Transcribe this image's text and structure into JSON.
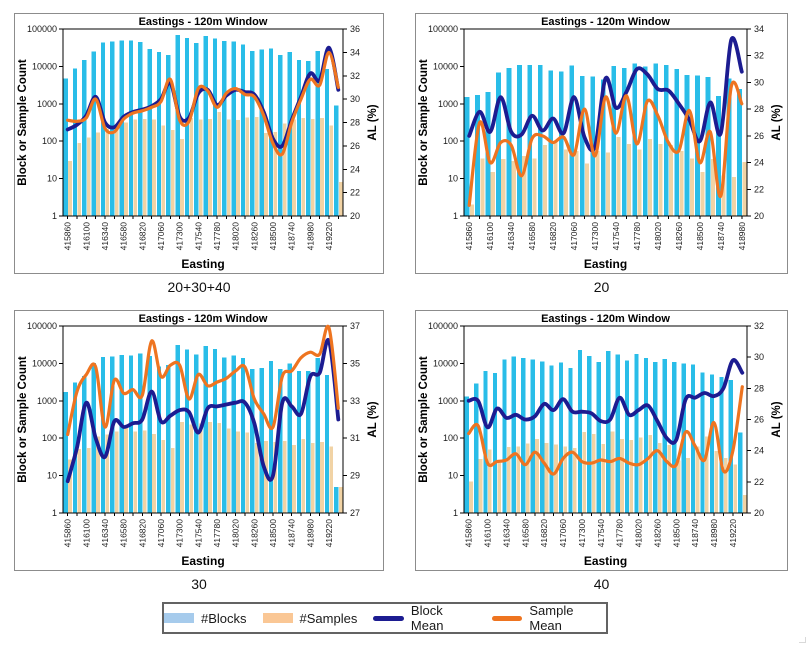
{
  "colors": {
    "blocks_bar": "#29BDE8",
    "samples_bar": "#F1D3A5",
    "block_mean": "#1C1C91",
    "sample_mean": "#EE7420",
    "legend_blocks": "#A6CBEC",
    "legend_samples": "#FAC795",
    "axis_line": "#000000",
    "tick_text": "#1a1a1a"
  },
  "legend": {
    "items": [
      {
        "label": "#Blocks",
        "swatch": "bar",
        "color_key": "legend_blocks"
      },
      {
        "label": "#Samples",
        "swatch": "bar",
        "color_key": "legend_samples"
      },
      {
        "label": "Block Mean",
        "swatch": "line",
        "color_key": "block_mean"
      },
      {
        "label": "Sample Mean",
        "swatch": "line",
        "color_key": "sample_mean"
      }
    ]
  },
  "chart_data": [
    {
      "id": "eastings-sum-20-30-40",
      "type": "bar+line",
      "panel_label": "20+30+40",
      "title": "Eastings - 120m Window",
      "xlabel": "Easting",
      "ylabel_left": "Block or Sample Count",
      "ylabel_right": "AL (%)",
      "left_axis": {
        "scale": "log",
        "min": 1,
        "max": 100000,
        "ticks": [
          "1",
          "10",
          "100",
          "1000",
          "10000",
          "100000"
        ]
      },
      "right_axis": {
        "min": 20,
        "max": 36,
        "ticks": [
          20,
          22,
          24,
          26,
          28,
          30,
          32,
          34,
          36
        ]
      },
      "x_start": 415860,
      "x_step": 120,
      "x_tick_labels": [
        "415860",
        "416100",
        "416340",
        "416580",
        "416820",
        "417060",
        "417300",
        "417540",
        "417780",
        "418020",
        "418260",
        "418500",
        "418740",
        "418980",
        "419220"
      ],
      "series": [
        {
          "name": "#Blocks",
          "type": "bar",
          "axis": "left",
          "color_key": "blocks_bar",
          "values": [
            4700,
            8900,
            15000,
            25000,
            43000,
            46000,
            50000,
            49000,
            45000,
            29000,
            24000,
            20000,
            70000,
            57000,
            42000,
            65000,
            55000,
            48000,
            46000,
            38000,
            26000,
            28000,
            30000,
            20000,
            24000,
            15000,
            14000,
            26000,
            8500,
            900
          ]
        },
        {
          "name": "#Samples",
          "type": "bar",
          "axis": "left",
          "color_key": "samples_bar",
          "values": [
            30,
            90,
            125,
            170,
            210,
            270,
            320,
            375,
            390,
            375,
            260,
            200,
            115,
            420,
            380,
            390,
            600,
            380,
            370,
            430,
            440,
            165,
            175,
            300,
            380,
            420,
            390,
            420,
            260,
            8
          ]
        },
        {
          "name": "Block Mean",
          "type": "line",
          "axis": "right",
          "color_key": "block_mean",
          "values": [
            27.4,
            27.8,
            28.6,
            30.2,
            28.0,
            27.6,
            28.5,
            28.9,
            29.1,
            29.4,
            30.0,
            31.4,
            28.5,
            28.4,
            30.5,
            30.8,
            29.5,
            30.3,
            30.8,
            30.6,
            30.4,
            28.9,
            26.6,
            26.0,
            28.2,
            30.2,
            32.2,
            31.6,
            34.4,
            30.8
          ]
        },
        {
          "name": "Sample Mean",
          "type": "line",
          "axis": "right",
          "color_key": "sample_mean",
          "values": [
            28.2,
            28.1,
            28.4,
            30.0,
            27.5,
            27.2,
            28.3,
            28.8,
            29.0,
            29.3,
            29.8,
            31.7,
            28.2,
            28.1,
            30.9,
            30.7,
            29.3,
            30.5,
            30.9,
            30.4,
            30.2,
            28.6,
            26.2,
            25.3,
            28.0,
            30.0,
            31.7,
            31.2,
            34.0,
            31.0
          ]
        }
      ]
    },
    {
      "id": "eastings-20",
      "type": "bar+line",
      "panel_label": "20",
      "title": "Eastings - 120m Window",
      "xlabel": "Easting",
      "ylabel_left": "Block or Sample Count",
      "ylabel_right": "AL (%)",
      "left_axis": {
        "scale": "log",
        "min": 1,
        "max": 100000,
        "ticks": [
          "1",
          "10",
          "100",
          "1000",
          "10000",
          "100000"
        ]
      },
      "right_axis": {
        "min": 20,
        "max": 34,
        "ticks": [
          20,
          22,
          24,
          26,
          28,
          30,
          32,
          34
        ]
      },
      "x_start": 415860,
      "x_step": 120,
      "x_tick_labels": [
        "415860",
        "416100",
        "416340",
        "416580",
        "416820",
        "417060",
        "417300",
        "417540",
        "417780",
        "418020",
        "418260",
        "418500",
        "418740",
        "418980"
      ],
      "series": [
        {
          "name": "#Blocks",
          "type": "bar",
          "axis": "left",
          "color_key": "blocks_bar",
          "values": [
            1500,
            1700,
            2100,
            6800,
            9000,
            11000,
            10800,
            11000,
            7800,
            7300,
            10500,
            5600,
            5300,
            4500,
            10300,
            9000,
            11800,
            10000,
            12100,
            10900,
            8600,
            5900,
            5800,
            5200,
            1600,
            4800,
            2500
          ]
        },
        {
          "name": "#Samples",
          "type": "bar",
          "axis": "left",
          "color_key": "samples_bar",
          "values": [
            2,
            35,
            15,
            33,
            30,
            40,
            35,
            80,
            95,
            60,
            55,
            25,
            55,
            50,
            130,
            85,
            60,
            115,
            85,
            80,
            55,
            35,
            15,
            33,
            12,
            11,
            28
          ]
        },
        {
          "name": "Block Mean",
          "type": "line",
          "axis": "right",
          "color_key": "block_mean",
          "values": [
            26.0,
            27.8,
            26.3,
            28.9,
            26.3,
            26.1,
            27.5,
            26.4,
            27.3,
            26.2,
            28.9,
            25.9,
            25.2,
            30.3,
            28.1,
            29.3,
            31.0,
            30.6,
            29.5,
            29.4,
            28.4,
            27.2,
            25.6,
            28.5,
            26.2,
            33.2,
            30.8
          ]
        },
        {
          "name": "Sample Mean",
          "type": "line",
          "axis": "right",
          "color_key": "sample_mean",
          "values": [
            20.8,
            27.0,
            24.0,
            25.5,
            25.3,
            23.0,
            25.8,
            26.0,
            25.5,
            25.9,
            24.6,
            28.0,
            24.5,
            28.9,
            26.2,
            29.0,
            25.4,
            28.6,
            27.5,
            25.5,
            24.9,
            27.9,
            24.0,
            26.3,
            21.5,
            29.7,
            28.4
          ]
        }
      ]
    },
    {
      "id": "eastings-30",
      "type": "bar+line",
      "panel_label": "30",
      "title": "Eastings - 120m Window",
      "xlabel": "Easting",
      "ylabel_left": "Block or Sample Count",
      "ylabel_right": "AL (%)",
      "left_axis": {
        "scale": "log",
        "min": 1,
        "max": 100000,
        "ticks": [
          "1",
          "10",
          "100",
          "1000",
          "10000",
          "100000"
        ]
      },
      "right_axis": {
        "min": 27,
        "max": 37,
        "ticks": [
          27,
          29,
          31,
          33,
          35,
          37
        ]
      },
      "x_start": 415860,
      "x_step": 120,
      "x_tick_labels": [
        "415860",
        "416100",
        "416340",
        "416580",
        "416820",
        "417060",
        "417300",
        "417540",
        "417780",
        "418020",
        "418260",
        "418500",
        "418740",
        "418980",
        "419220"
      ],
      "series": [
        {
          "name": "#Blocks",
          "type": "bar",
          "axis": "left",
          "color_key": "blocks_bar",
          "values": [
            1700,
            3100,
            4600,
            10200,
            14800,
            15300,
            16800,
            16100,
            18500,
            16000,
            8300,
            9000,
            31000,
            23500,
            17500,
            29500,
            24000,
            14500,
            16500,
            14000,
            7000,
            7500,
            11500,
            7000,
            10000,
            6300,
            6300,
            13800,
            4900,
            5
          ]
        },
        {
          "name": "#Samples",
          "type": "bar",
          "axis": "left",
          "color_key": "samples_bar",
          "values": [
            27,
            52,
            55,
            110,
            125,
            150,
            185,
            150,
            160,
            130,
            90,
            55,
            270,
            230,
            250,
            270,
            255,
            180,
            150,
            140,
            75,
            85,
            80,
            85,
            65,
            95,
            75,
            80,
            60,
            5
          ]
        },
        {
          "name": "Block Mean",
          "type": "line",
          "axis": "right",
          "color_key": "block_mean",
          "values": [
            28.7,
            30.5,
            32.9,
            31.0,
            30.0,
            31.9,
            31.6,
            31.8,
            32.0,
            33.5,
            31.9,
            32.2,
            32.5,
            32.4,
            31.3,
            32.6,
            32.7,
            32.8,
            32.9,
            32.9,
            31.8,
            29.5,
            29.0,
            32.9,
            32.7,
            32.3,
            34.3,
            34.5,
            36.2,
            32.0
          ]
        },
        {
          "name": "Sample Mean",
          "type": "line",
          "axis": "right",
          "color_key": "sample_mean",
          "values": [
            31.2,
            33.5,
            34.4,
            34.8,
            31.6,
            34.1,
            33.4,
            33.6,
            33.3,
            36.2,
            34.3,
            34.9,
            34.9,
            33.1,
            34.4,
            33.8,
            34.0,
            34.2,
            34.6,
            34.8,
            33.1,
            32.3,
            31.6,
            34.3,
            34.6,
            35.3,
            35.6,
            35.5,
            36.9,
            32.6
          ]
        }
      ]
    },
    {
      "id": "eastings-40",
      "type": "bar+line",
      "panel_label": "40",
      "title": "Eastings - 120m Window",
      "xlabel": "Easting",
      "ylabel_left": "Block or Sample Count",
      "ylabel_right": "AL (%)",
      "left_axis": {
        "scale": "log",
        "min": 1,
        "max": 100000,
        "ticks": [
          "1",
          "10",
          "100",
          "1000",
          "10000",
          "100000"
        ]
      },
      "right_axis": {
        "min": 20,
        "max": 32,
        "ticks": [
          20,
          22,
          24,
          26,
          28,
          30,
          32
        ]
      },
      "x_start": 415860,
      "x_step": 120,
      "x_tick_labels": [
        "415860",
        "416100",
        "416340",
        "416580",
        "416820",
        "417060",
        "417300",
        "417540",
        "417780",
        "418020",
        "418260",
        "418500",
        "418740",
        "418980",
        "419220"
      ],
      "series": [
        {
          "name": "#Blocks",
          "type": "bar",
          "axis": "left",
          "color_key": "blocks_bar",
          "values": [
            1300,
            2900,
            6200,
            5600,
            12800,
            15500,
            14000,
            12800,
            11200,
            8800,
            10500,
            7500,
            22500,
            16000,
            11000,
            21500,
            17500,
            11800,
            17800,
            14000,
            10800,
            13200,
            11000,
            10000,
            9300,
            5800,
            5000,
            4300,
            3600,
            140
          ]
        },
        {
          "name": "#Samples",
          "type": "bar",
          "axis": "left",
          "color_key": "samples_bar",
          "values": [
            7,
            28,
            50,
            22,
            58,
            60,
            72,
            95,
            75,
            68,
            60,
            55,
            145,
            130,
            70,
            150,
            95,
            90,
            105,
            120,
            75,
            65,
            25,
            30,
            60,
            110,
            45,
            30,
            20,
            3
          ]
        },
        {
          "name": "Block Mean",
          "type": "line",
          "axis": "right",
          "color_key": "block_mean",
          "values": [
            27.2,
            27.2,
            25.5,
            26.7,
            26.1,
            26.3,
            26.0,
            26.2,
            27.0,
            26.6,
            27.3,
            26.5,
            26.5,
            26.4,
            25.9,
            26.0,
            27.4,
            26.3,
            26.6,
            26.9,
            25.9,
            24.8,
            24.7,
            27.3,
            27.4,
            27.7,
            27.5,
            28.0,
            29.8,
            29.0
          ]
        },
        {
          "name": "Sample Mean",
          "type": "line",
          "axis": "right",
          "color_key": "sample_mean",
          "values": [
            25.1,
            25.6,
            23.2,
            23.3,
            23.4,
            23.8,
            23.1,
            23.9,
            23.2,
            22.5,
            23.5,
            23.9,
            23.3,
            23.2,
            23.4,
            23.3,
            23.5,
            23.2,
            23.1,
            23.5,
            24.0,
            23.3,
            23.1,
            25.2,
            24.3,
            23.4,
            25.8,
            22.7,
            24.0,
            28.1
          ]
        }
      ]
    }
  ]
}
